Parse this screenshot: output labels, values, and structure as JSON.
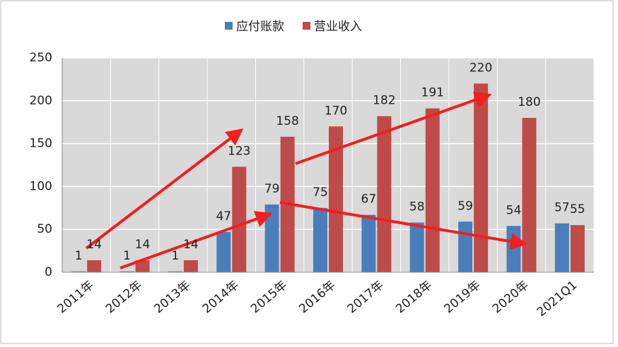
{
  "chart_data": {
    "type": "bar",
    "categories": [
      "2011年",
      "2012年",
      "2013年",
      "2014年",
      "2015年",
      "2016年",
      "2017年",
      "2018年",
      "2019年",
      "2020年",
      "2021Q1"
    ],
    "series": [
      {
        "name": "应付账款",
        "color": "#4a7ebb",
        "values": [
          1,
          1,
          1,
          47,
          79,
          75,
          67,
          58,
          59,
          54,
          57
        ]
      },
      {
        "name": "营业收入",
        "color": "#be4b48",
        "values": [
          14,
          14,
          14,
          123,
          158,
          170,
          182,
          191,
          220,
          180,
          55
        ]
      }
    ],
    "ylim": [
      0,
      250
    ],
    "yticks": [
      0,
      50,
      100,
      150,
      200,
      250
    ],
    "grid": true,
    "legend": "top"
  }
}
